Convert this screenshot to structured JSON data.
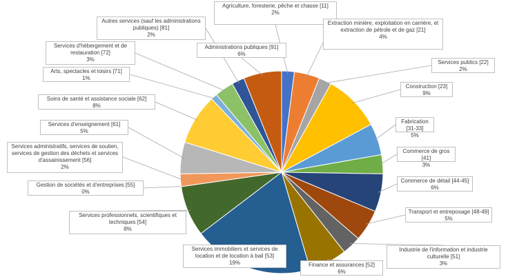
{
  "chart_data": {
    "type": "pie",
    "title": "",
    "legend": "none",
    "slices": [
      {
        "label": "Agriculture, foresterie, pêche et chasse",
        "code": "[11]",
        "value": 2,
        "pct_label": "2%",
        "color": "#4472c4"
      },
      {
        "label": "Extraction minière, exploitation en carrière, et extraction de pétrole et de gaz",
        "code": "[21]",
        "value": 4,
        "pct_label": "4%",
        "color": "#ed7d31"
      },
      {
        "label": "Services publics",
        "code": "[22]",
        "value": 2,
        "pct_label": "2%",
        "color": "#a5a5a5"
      },
      {
        "label": "Construction",
        "code": "[23]",
        "value": 9,
        "pct_label": "9%",
        "color": "#ffc000"
      },
      {
        "label": "Fabrication",
        "code": "[31-33]",
        "value": 5,
        "pct_label": "5%",
        "color": "#5b9bd5"
      },
      {
        "label": "Commerce de gros",
        "code": "[41]",
        "value": 3,
        "pct_label": "3%",
        "color": "#70ad47"
      },
      {
        "label": "Commerce de détail",
        "code": "[44-45]",
        "value": 6,
        "pct_label": "6%",
        "color": "#264478"
      },
      {
        "label": "Transport et entreposage",
        "code": "[48-49]",
        "value": 5,
        "pct_label": "5%",
        "color": "#9e480e"
      },
      {
        "label": "Industrie de l'information et industrie culturelle",
        "code": "[51]",
        "value": 3,
        "pct_label": "3%",
        "color": "#636363"
      },
      {
        "label": "Finance et assurances",
        "code": "[52]",
        "value": 6,
        "pct_label": "6%",
        "color": "#997300"
      },
      {
        "label": "Services immobiliers et services de location et de location à bail",
        "code": "[53]",
        "value": 19,
        "pct_label": "19%",
        "color": "#255e91"
      },
      {
        "label": "Services professionnels, scientifiques et techniques",
        "code": "[54]",
        "value": 8,
        "pct_label": "8%",
        "color": "#43682b"
      },
      {
        "label": "Gestion de sociétés et d'entreprises",
        "code": "[55]",
        "value": 0,
        "pct_label": "0%",
        "color": "#698ed0"
      },
      {
        "label": "Services administratifs, services de soutien, services de gestion des déchets et services d'assainissement",
        "code": "[56]",
        "value": 2,
        "pct_label": "2%",
        "color": "#f1975a"
      },
      {
        "label": "Services d'enseignement",
        "code": "[61]",
        "value": 5,
        "pct_label": "5%",
        "color": "#b7b7b7"
      },
      {
        "label": "Soins de santé et assistance sociale",
        "code": "[62]",
        "value": 8,
        "pct_label": "8%",
        "color": "#ffcd33"
      },
      {
        "label": "Arts, spectacles et loisirs",
        "code": "[71]",
        "value": 1,
        "pct_label": "1%",
        "color": "#7cafdd"
      },
      {
        "label": "Services d'hébergement et de restauration",
        "code": "[72]",
        "value": 3,
        "pct_label": "3%",
        "color": "#8cc168"
      },
      {
        "label": "Autres services (sauf les administrations publiques)",
        "code": "[81]",
        "value": 2,
        "pct_label": "2%",
        "color": "#2f5597"
      },
      {
        "label": "Administrations publiques",
        "code": "[91]",
        "value": 6,
        "pct_label": "6%",
        "color": "#c55a11"
      }
    ]
  }
}
